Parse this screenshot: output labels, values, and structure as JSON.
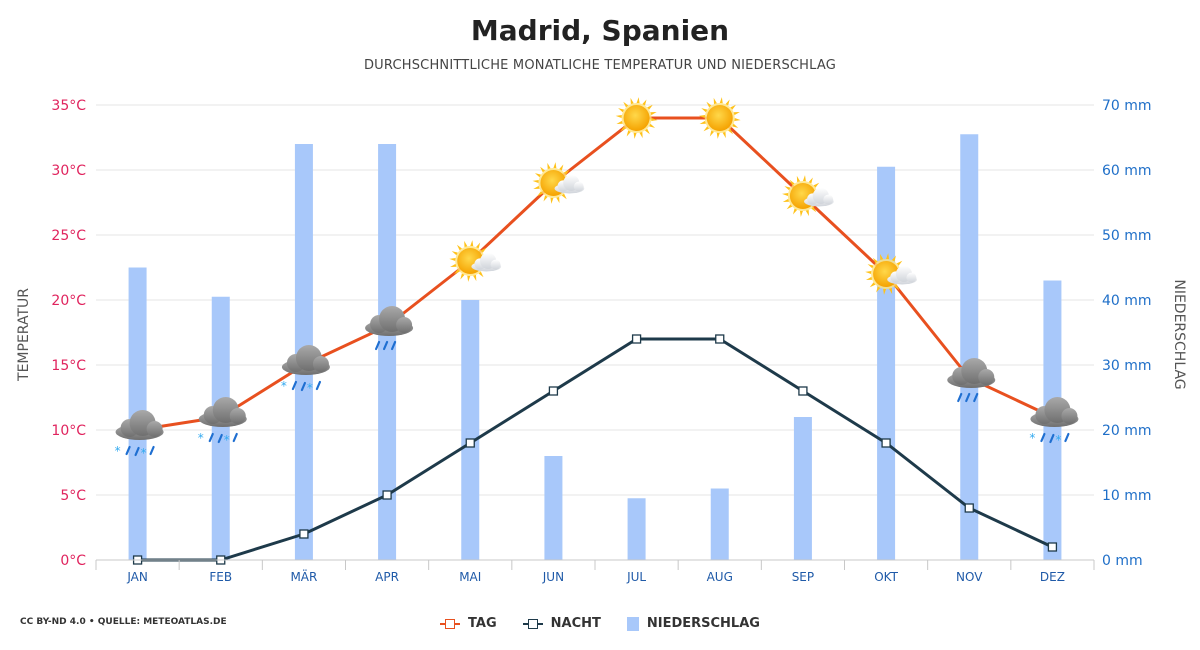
{
  "title": "Madrid, Spanien",
  "subtitle": "DURCHSCHNITTLICHE MONATLICHE TEMPERATUR UND NIEDERSCHLAG",
  "source": "CC BY-ND 4.0 • QUELLE: METEOATLAS.DE",
  "legend": {
    "day": "TAG",
    "night": "NACHT",
    "precip": "NIEDERSCHLAG"
  },
  "colors": {
    "day": "#e8501f",
    "night": "#1e3a4a",
    "precip": "#a8c8fa",
    "left_axis": "#e0245e",
    "right_axis": "#1f6fc8",
    "month_axis": "#1f5aa8"
  },
  "chart_data": {
    "type": "bar+line",
    "categories": [
      "JAN",
      "FEB",
      "MÄR",
      "APR",
      "MAI",
      "JUN",
      "JUL",
      "AUG",
      "SEP",
      "OKT",
      "NOV",
      "DEZ"
    ],
    "left_axis": {
      "label": "TEMPERATUR",
      "range": [
        0,
        35
      ],
      "ticks": [
        0,
        5,
        10,
        15,
        20,
        25,
        30,
        35
      ],
      "tick_labels": [
        "0°C",
        "5°C",
        "10°C",
        "15°C",
        "20°C",
        "25°C",
        "30°C",
        "35°C"
      ]
    },
    "right_axis": {
      "label": "NIEDERSCHLAG",
      "range": [
        0,
        70
      ],
      "ticks": [
        0,
        10,
        20,
        30,
        40,
        50,
        60,
        70
      ],
      "tick_labels": [
        "0 mm",
        "10 mm",
        "20 mm",
        "30 mm",
        "40 mm",
        "50 mm",
        "60 mm",
        "70 mm"
      ]
    },
    "grid": true,
    "legend_position": "bottom",
    "series": [
      {
        "name": "TAG",
        "type": "line",
        "axis": "left",
        "values": [
          10,
          11,
          15,
          18,
          23,
          29,
          34,
          34,
          28,
          22,
          14,
          11
        ]
      },
      {
        "name": "NACHT",
        "type": "line",
        "axis": "left",
        "values": [
          0,
          0,
          2,
          5,
          9,
          13,
          17,
          17,
          13,
          9,
          4,
          1
        ]
      },
      {
        "name": "NIEDERSCHLAG",
        "type": "bar",
        "axis": "right",
        "values": [
          45,
          40.5,
          64,
          64,
          40,
          16,
          9.5,
          11,
          22,
          60.5,
          65.5,
          43
        ]
      }
    ],
    "weather_icons": [
      "cloud-snow-icon",
      "cloud-snow-icon",
      "cloud-snow-icon",
      "cloud-rain-icon",
      "sun-cloud-icon",
      "sun-cloud-icon",
      "sun-icon",
      "sun-icon",
      "sun-cloud-icon",
      "sun-cloud-icon",
      "cloud-rain-icon",
      "cloud-snow-icon"
    ]
  }
}
